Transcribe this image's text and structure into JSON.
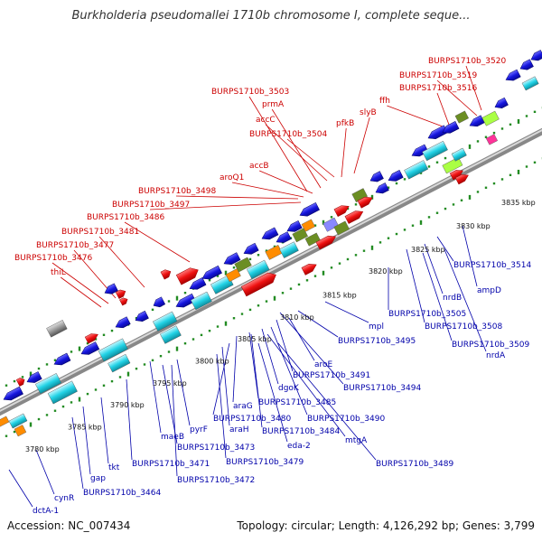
{
  "title": "Burkholderia pseudomallei 1710b chromosome I, complete seque...",
  "footer": {
    "accession": "Accession: NC_007434",
    "topology": "Topology: circular; Length: 4,126,292 bp; Genes: 3,799"
  },
  "colors": {
    "forward_label": "#cc0000",
    "reverse_label": "#0000aa",
    "forward_gene": "#ee1111",
    "reverse_gene": "#1111dd",
    "backbone": "#999999",
    "tick_marks": "#228b22"
  },
  "tick_labels": [
    "3780 kbp",
    "3785 kbp",
    "3790 kbp",
    "3795 kbp",
    "3800 kbp",
    "3805 kbp",
    "3810 kbp",
    "3815 kbp",
    "3820 kbp",
    "3825 kbp",
    "3830 kbp",
    "3835 kbp"
  ],
  "forward_labels": [
    "BURPS1710b_3520",
    "BURPS1710b_3519",
    "BURPS1710b_3516",
    "ffh",
    "BURPS1710b_3503",
    "prmA",
    "slyB",
    "accC",
    "pfkB",
    "BURPS1710b_3504",
    "accB",
    "aroQ1",
    "BURPS1710b_3498",
    "BURPS1710b_3497",
    "BURPS1710b_3486",
    "BURPS1710b_3481",
    "BURPS1710b_3477",
    "BURPS1710b_3476",
    "thiL"
  ],
  "reverse_labels": [
    "BURPS1710b_3514",
    "ampD",
    "nrdB",
    "BURPS1710b_3505",
    "BURPS1710b_3508",
    "BURPS1710b_3509",
    "nrdA",
    "mpl",
    "BURPS1710b_3495",
    "aroE",
    "BURPS1710b_3491",
    "BURPS1710b_3494",
    "dgoK",
    "BURPS1710b_3485",
    "araG",
    "BURPS1710b_3490",
    "BURPS1710b_3480",
    "BURPS1710b_3484",
    "mtgA",
    "araH",
    "eda-2",
    "maeB",
    "pyrF",
    "BURPS1710b_3473",
    "BURPS1710b_3479",
    "BURPS1710b_3489",
    "BURPS1710b_3471",
    "BURPS1710b_3472",
    "tkt",
    "gap",
    "BURPS1710b_3464",
    "cynR",
    "dctA-1"
  ]
}
